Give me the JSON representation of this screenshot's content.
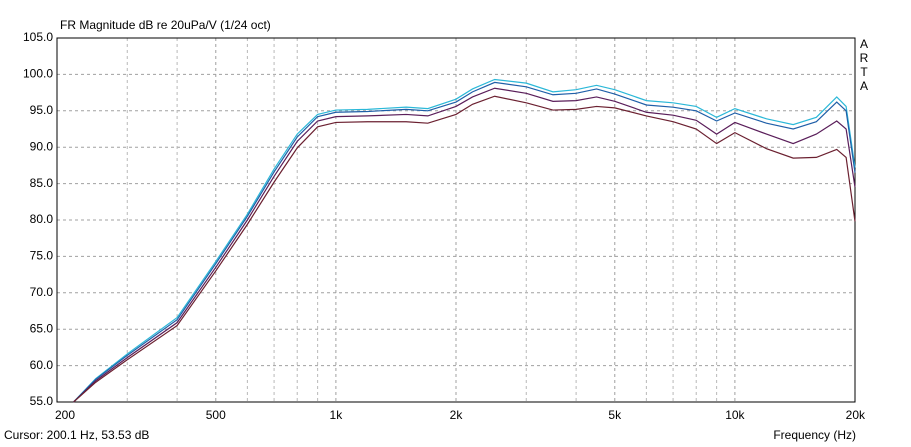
{
  "chart_data": {
    "type": "line",
    "title": "FR Magnitude dB re 20uPa/V (1/24 oct)",
    "watermark": "ARTA",
    "cursor": "Cursor: 200.1 Hz, 53.53 dB",
    "x_label": "Frequency (Hz)",
    "xscale": "log",
    "grid": true,
    "xlim": [
      200,
      20000
    ],
    "xticks": [
      200,
      500,
      {
        "value": 1000,
        "label": "1k"
      },
      {
        "value": 2000,
        "label": "2k"
      },
      {
        "value": 5000,
        "label": "5k"
      },
      {
        "value": 10000,
        "label": "10k"
      },
      {
        "value": 20000,
        "label": "20k"
      }
    ],
    "xminorticks": [
      300,
      400,
      600,
      700,
      800,
      900,
      3000,
      4000,
      6000,
      7000,
      8000,
      9000
    ],
    "ylim": [
      55,
      105
    ],
    "yticks": [
      {
        "value": 55,
        "label": "55.0"
      },
      {
        "value": 60,
        "label": "60.0"
      },
      {
        "value": 65,
        "label": "65.0"
      },
      {
        "value": 70,
        "label": "70.0"
      },
      {
        "value": 75,
        "label": "75.0"
      },
      {
        "value": 80,
        "label": "80.0"
      },
      {
        "value": 85,
        "label": "85.0"
      },
      {
        "value": 90,
        "label": "90.0"
      },
      {
        "value": 95,
        "label": "95.0"
      },
      {
        "value": 100,
        "label": "100.0"
      },
      {
        "value": 105,
        "label": "105.0"
      }
    ],
    "x": [
      220,
      250,
      300,
      400,
      500,
      600,
      700,
      800,
      900,
      1000,
      1200,
      1500,
      1700,
      2000,
      2200,
      2500,
      3000,
      3500,
      4000,
      4500,
      5000,
      6000,
      7000,
      8000,
      9000,
      10000,
      12000,
      14000,
      16000,
      18000,
      19000,
      20000
    ],
    "series": [
      {
        "color": "#2bb8d8",
        "values": [
          55,
          58.2,
          61.6,
          66.6,
          74.3,
          80.8,
          87,
          91.8,
          94.5,
          95.1,
          95.2,
          95.5,
          95.3,
          96.6,
          98,
          99.3,
          98.8,
          97.6,
          97.9,
          98.5,
          97.9,
          96.4,
          96.1,
          95.6,
          94.1,
          95.3,
          93.9,
          93.1,
          94.1,
          96.9,
          95.6,
          87.2
        ]
      },
      {
        "color": "#1f5fa8",
        "values": [
          55,
          58.1,
          61.4,
          66.3,
          74,
          80.5,
          86.6,
          91.4,
          94.2,
          94.8,
          94.9,
          95.2,
          95,
          96.2,
          97.6,
          98.9,
          98.3,
          97.2,
          97.4,
          98,
          97.3,
          95.8,
          95.5,
          95,
          93.6,
          94.7,
          93.3,
          92.5,
          93.5,
          96.2,
          95,
          86.5
        ]
      },
      {
        "color": "#5a1e5a",
        "values": [
          55,
          57.9,
          61.1,
          65.9,
          73.5,
          80,
          86,
          90.8,
          93.6,
          94.2,
          94.3,
          94.5,
          94.3,
          95.6,
          96.9,
          98.1,
          97.4,
          96.3,
          96.4,
          96.9,
          96.3,
          94.8,
          94.4,
          93.7,
          91.8,
          93.4,
          91.8,
          90.5,
          91.8,
          93.6,
          92.5,
          84.5
        ]
      },
      {
        "color": "#6b2030",
        "values": [
          55,
          57.7,
          60.8,
          65.5,
          73,
          79.4,
          85.2,
          89.9,
          92.8,
          93.4,
          93.5,
          93.5,
          93.3,
          94.5,
          95.9,
          97,
          96.1,
          95.1,
          95.2,
          95.6,
          95.4,
          94.3,
          93.5,
          92.5,
          90.5,
          92,
          89.8,
          88.5,
          88.6,
          89.7,
          88.6,
          79.8
        ]
      }
    ]
  }
}
